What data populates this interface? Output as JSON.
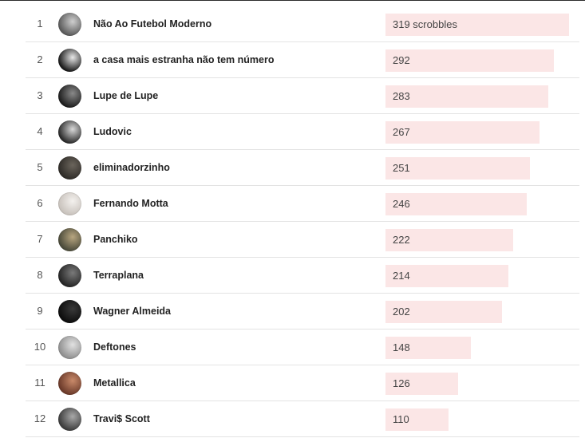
{
  "unit_label": "scrobbles",
  "max_scrobbles": 319,
  "rows": [
    {
      "rank": "1",
      "name": "Não Ao Futebol Moderno",
      "scrobbles": 319,
      "label": "319 scrobbles",
      "avatar": "artist-avatar-icon",
      "tone": [
        "#5a5a5a",
        "#cfcfcf"
      ]
    },
    {
      "rank": "2",
      "name": "a casa mais estranha não tem número",
      "scrobbles": 292,
      "label": "292",
      "avatar": "artist-avatar-icon",
      "tone": [
        "#1a1a1a",
        "#e8e8e8"
      ]
    },
    {
      "rank": "3",
      "name": "Lupe de Lupe",
      "scrobbles": 283,
      "label": "283",
      "avatar": "artist-avatar-icon",
      "tone": [
        "#1e1e1e",
        "#8a8a8a"
      ]
    },
    {
      "rank": "4",
      "name": "Ludovic",
      "scrobbles": 267,
      "label": "267",
      "avatar": "artist-avatar-icon",
      "tone": [
        "#2a2a2a",
        "#d9d9d9"
      ]
    },
    {
      "rank": "5",
      "name": "eliminadorzinho",
      "scrobbles": 251,
      "label": "251",
      "avatar": "artist-avatar-icon",
      "tone": [
        "#2f2c28",
        "#6b655c"
      ]
    },
    {
      "rank": "6",
      "name": "Fernando Motta",
      "scrobbles": 246,
      "label": "246",
      "avatar": "artist-avatar-icon",
      "tone": [
        "#c8c2bc",
        "#f4f1ee"
      ]
    },
    {
      "rank": "7",
      "name": "Panchiko",
      "scrobbles": 222,
      "label": "222",
      "avatar": "artist-avatar-icon",
      "tone": [
        "#4a4a3a",
        "#b8a680"
      ]
    },
    {
      "rank": "8",
      "name": "Terraplana",
      "scrobbles": 214,
      "label": "214",
      "avatar": "artist-avatar-icon",
      "tone": [
        "#262626",
        "#7a7a7a"
      ]
    },
    {
      "rank": "9",
      "name": "Wagner Almeida",
      "scrobbles": 202,
      "label": "202",
      "avatar": "artist-avatar-icon",
      "tone": [
        "#0d0d0d",
        "#3a3a3a"
      ]
    },
    {
      "rank": "10",
      "name": "Deftones",
      "scrobbles": 148,
      "label": "148",
      "avatar": "artist-avatar-icon",
      "tone": [
        "#8f8f8f",
        "#e2e2e2"
      ]
    },
    {
      "rank": "11",
      "name": "Metallica",
      "scrobbles": 126,
      "label": "126",
      "avatar": "artist-avatar-icon",
      "tone": [
        "#6b3a2a",
        "#c98a6a"
      ]
    },
    {
      "rank": "12",
      "name": "Travi$ Scott",
      "scrobbles": 110,
      "label": "110",
      "avatar": "artist-avatar-icon",
      "tone": [
        "#3c3c3c",
        "#a9a9a9"
      ]
    }
  ],
  "colors": {
    "bar_fill": "#fbe6e6",
    "row_divider": "#e3e3e3",
    "name_text": "#222222",
    "rank_text": "#555555"
  }
}
